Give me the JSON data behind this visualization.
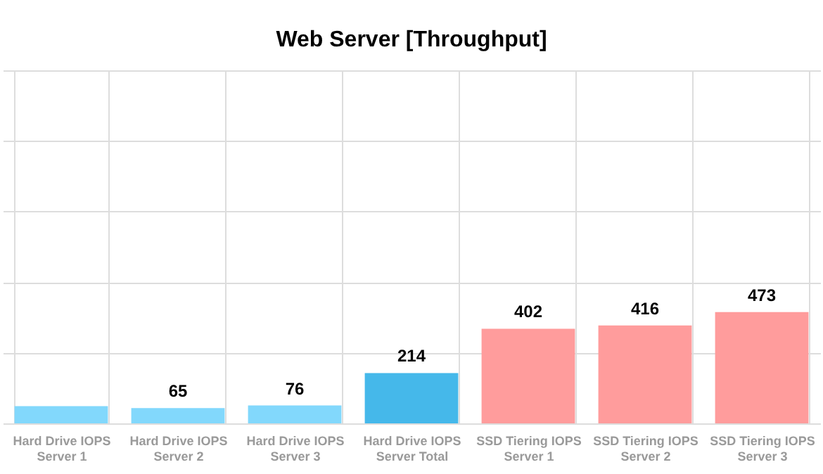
{
  "chart_data": {
    "type": "bar",
    "title": "Web Server [Throughput]",
    "categories": [
      "Hard Drive IOPS Server 1",
      "Hard Drive IOPS Server 2",
      "Hard Drive IOPS Server 3",
      "Hard Drive IOPS Server Total",
      "SSD Tiering IOPS Server 1",
      "SSD Tiering IOPS Server 2",
      "SSD Tiering IOPS Server 3"
    ],
    "values": [
      73,
      65,
      76,
      214,
      402,
      416,
      473
    ],
    "value_labels": [
      null,
      "65",
      "76",
      "214",
      "402",
      "416",
      "473"
    ],
    "colors": [
      "#82d8fc",
      "#82d8fc",
      "#82d8fc",
      "#45b8ea",
      "#ff9c9c",
      "#ff9c9c",
      "#ff9c9c"
    ],
    "ylim": [
      0,
      1500
    ],
    "yticks": [
      {
        "value": 0,
        "label": null
      },
      {
        "value": 300,
        "label": null
      },
      {
        "value": 600,
        "label": null
      },
      {
        "value": 900,
        "label": null
      },
      {
        "value": 1200,
        "label": null
      },
      {
        "value": 1500,
        "label": null
      }
    ],
    "grid": true,
    "tick_labels": "x"
  }
}
